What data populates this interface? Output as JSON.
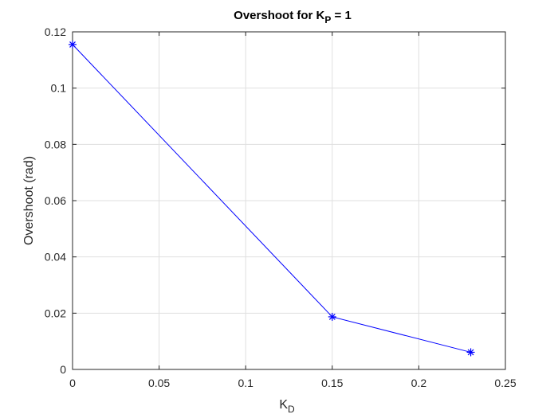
{
  "chart_data": {
    "type": "line",
    "title": {
      "prefix": "Overshoot for K",
      "subscript": "P",
      "suffix": " = 1"
    },
    "xlabel": {
      "main": "K",
      "subscript": "D"
    },
    "ylabel": "Overshoot (rad)",
    "xlim": [
      0,
      0.25
    ],
    "ylim": [
      0,
      0.12
    ],
    "xticks": [
      0,
      0.05,
      0.1,
      0.15,
      0.2,
      0.25
    ],
    "xtick_labels": [
      "0",
      "0.05",
      "0.1",
      "0.15",
      "0.2",
      "0.25"
    ],
    "yticks": [
      0,
      0.02,
      0.04,
      0.06,
      0.08,
      0.1,
      0.12
    ],
    "ytick_labels": [
      "0",
      "0.02",
      "0.04",
      "0.06",
      "0.08",
      "0.1",
      "0.12"
    ],
    "grid": true,
    "series": [
      {
        "x": [
          0,
          0.15,
          0.23
        ],
        "y": [
          0.1155,
          0.0187,
          0.0061
        ],
        "marker": "asterisk",
        "color": "#0000ff"
      }
    ]
  },
  "colors": {
    "axis": "#262626",
    "grid": "#dfdfdf",
    "background": "#ffffff"
  }
}
